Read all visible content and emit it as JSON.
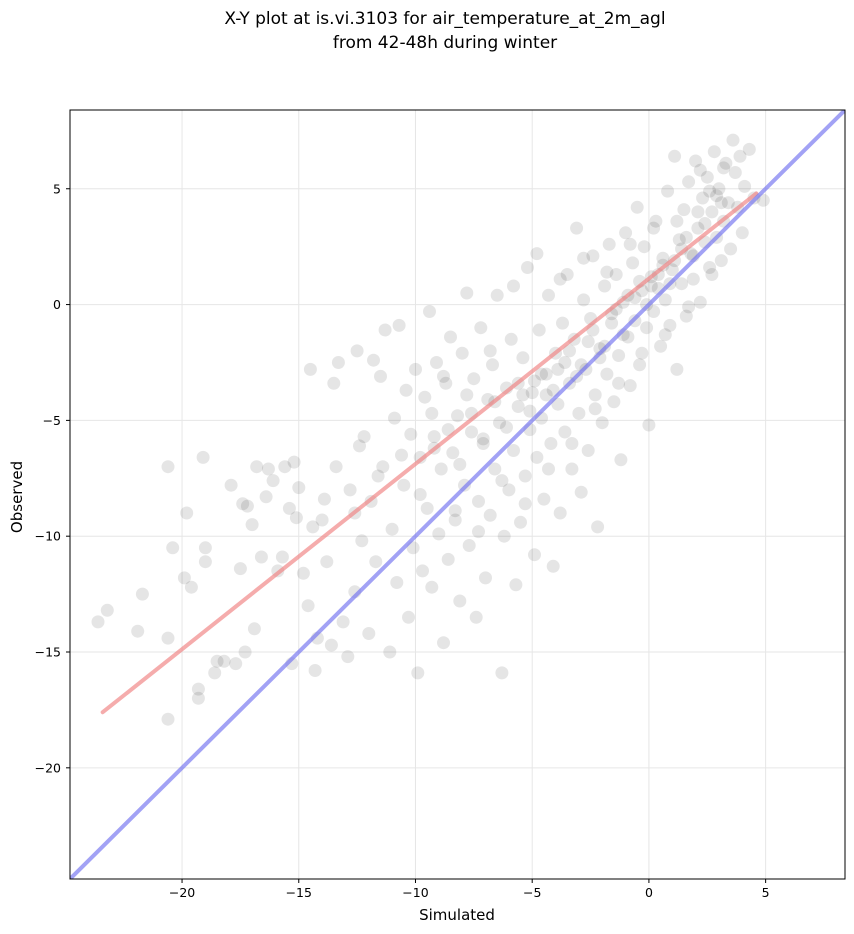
{
  "chart_data": {
    "type": "scatter",
    "title": "X-Y plot at is.vi.3103 for air_temperature_at_2m_agl",
    "subtitle": "from 42-48h during winter",
    "xlabel": "Simulated",
    "ylabel": "Observed",
    "xlim": [
      -24.8,
      8.4
    ],
    "ylim": [
      -24.8,
      8.4
    ],
    "xticks": [
      -20,
      -15,
      -10,
      -5,
      0,
      5
    ],
    "yticks": [
      -20,
      -15,
      -10,
      -5,
      0,
      5
    ],
    "xtick_labels": [
      "−20",
      "−15",
      "−10",
      "−5",
      "0",
      "5"
    ],
    "ytick_labels": [
      "−20",
      "−15",
      "−10",
      "−5",
      "0",
      "5"
    ],
    "grid": true,
    "point_color": "#000000",
    "point_alpha": 0.1,
    "lines": [
      {
        "role": "regression",
        "color": "#f08080",
        "x": [
          -23.4,
          4.6
        ],
        "y": [
          -17.6,
          4.8
        ]
      },
      {
        "role": "one-to-one",
        "color": "#7070f0",
        "x": [
          -24.8,
          8.4
        ],
        "y": [
          -24.8,
          8.4
        ]
      }
    ],
    "points": [
      [
        -23.6,
        -13.7
      ],
      [
        -23.2,
        -13.2
      ],
      [
        -21.9,
        -14.1
      ],
      [
        -21.7,
        -12.5
      ],
      [
        -20.6,
        -17.9
      ],
      [
        -20.6,
        -14.4
      ],
      [
        -20.6,
        -7.0
      ],
      [
        -20.4,
        -10.5
      ],
      [
        -19.9,
        -11.8
      ],
      [
        -19.8,
        -9.0
      ],
      [
        -19.6,
        -12.2
      ],
      [
        -19.3,
        -17.0
      ],
      [
        -19.3,
        -16.6
      ],
      [
        -19.1,
        -6.6
      ],
      [
        -19.0,
        -10.5
      ],
      [
        -19.0,
        -11.1
      ],
      [
        -18.6,
        -15.9
      ],
      [
        -18.5,
        -15.4
      ],
      [
        -18.2,
        -15.4
      ],
      [
        -17.9,
        -7.8
      ],
      [
        -17.7,
        -15.5
      ],
      [
        -17.5,
        -11.4
      ],
      [
        -17.4,
        -8.6
      ],
      [
        -17.3,
        -15.0
      ],
      [
        -17.2,
        -8.7
      ],
      [
        -17.0,
        -9.5
      ],
      [
        -16.9,
        -14.0
      ],
      [
        -16.8,
        -7.0
      ],
      [
        -16.6,
        -10.9
      ],
      [
        -16.4,
        -8.3
      ],
      [
        -16.3,
        -7.1
      ],
      [
        -16.1,
        -7.6
      ],
      [
        -15.9,
        -11.5
      ],
      [
        -15.7,
        -10.9
      ],
      [
        -15.6,
        -7.0
      ],
      [
        -15.4,
        -8.8
      ],
      [
        -15.3,
        -15.5
      ],
      [
        -15.2,
        -6.8
      ],
      [
        -15.1,
        -9.2
      ],
      [
        -15.0,
        -7.9
      ],
      [
        -14.8,
        -11.6
      ],
      [
        -14.6,
        -13.0
      ],
      [
        -14.5,
        -2.8
      ],
      [
        -14.4,
        -9.6
      ],
      [
        -14.3,
        -15.8
      ],
      [
        -14.2,
        -14.4
      ],
      [
        -14.0,
        -9.3
      ],
      [
        -13.9,
        -8.4
      ],
      [
        -13.8,
        -11.1
      ],
      [
        -13.6,
        -14.7
      ],
      [
        -13.5,
        -3.4
      ],
      [
        -13.4,
        -7.0
      ],
      [
        -13.3,
        -2.5
      ],
      [
        -13.1,
        -13.7
      ],
      [
        -12.9,
        -15.2
      ],
      [
        -12.8,
        -8.0
      ],
      [
        -12.6,
        -12.4
      ],
      [
        -12.5,
        -2.0
      ],
      [
        -12.4,
        -6.1
      ],
      [
        -12.3,
        -10.2
      ],
      [
        -12.2,
        -5.7
      ],
      [
        -12.0,
        -14.2
      ],
      [
        -11.9,
        -8.5
      ],
      [
        -11.8,
        -2.4
      ],
      [
        -11.7,
        -11.1
      ],
      [
        -11.5,
        -3.1
      ],
      [
        -11.4,
        -7.0
      ],
      [
        -11.3,
        -1.1
      ],
      [
        -11.1,
        -15.0
      ],
      [
        -11.0,
        -9.7
      ],
      [
        -10.9,
        -4.9
      ],
      [
        -10.8,
        -12.0
      ],
      [
        -10.7,
        -0.9
      ],
      [
        -10.5,
        -7.8
      ],
      [
        -10.4,
        -3.7
      ],
      [
        -10.3,
        -13.5
      ],
      [
        -10.2,
        -5.6
      ],
      [
        -10.1,
        -10.5
      ],
      [
        -10.0,
        -2.8
      ],
      [
        -9.9,
        -15.9
      ],
      [
        -9.8,
        -6.6
      ],
      [
        -9.7,
        -11.5
      ],
      [
        -9.6,
        -4.0
      ],
      [
        -9.5,
        -8.8
      ],
      [
        -9.4,
        -0.3
      ],
      [
        -9.3,
        -12.2
      ],
      [
        -9.2,
        -5.7
      ],
      [
        -9.1,
        -2.5
      ],
      [
        -9.0,
        -9.9
      ],
      [
        -8.9,
        -7.1
      ],
      [
        -8.8,
        -14.6
      ],
      [
        -8.7,
        -3.4
      ],
      [
        -8.6,
        -11.0
      ],
      [
        -8.5,
        -1.4
      ],
      [
        -8.4,
        -6.4
      ],
      [
        -8.3,
        -9.3
      ],
      [
        -8.2,
        -4.8
      ],
      [
        -8.1,
        -12.8
      ],
      [
        -8.0,
        -2.1
      ],
      [
        -7.9,
        -7.8
      ],
      [
        -7.8,
        0.5
      ],
      [
        -7.7,
        -10.4
      ],
      [
        -7.6,
        -5.5
      ],
      [
        -7.5,
        -3.2
      ],
      [
        -7.4,
        -13.5
      ],
      [
        -7.3,
        -8.5
      ],
      [
        -7.2,
        -1.0
      ],
      [
        -7.1,
        -6.0
      ],
      [
        -7.0,
        -11.8
      ],
      [
        -6.9,
        -4.1
      ],
      [
        -6.8,
        -9.1
      ],
      [
        -6.7,
        -2.6
      ],
      [
        -6.6,
        -7.1
      ],
      [
        -6.5,
        0.4
      ],
      [
        -6.4,
        -5.1
      ],
      [
        -6.3,
        -15.9
      ],
      [
        -6.2,
        -10.0
      ],
      [
        -6.1,
        -3.6
      ],
      [
        -6.0,
        -8.0
      ],
      [
        -5.9,
        -1.5
      ],
      [
        -5.8,
        -6.3
      ],
      [
        -5.7,
        -12.1
      ],
      [
        -5.6,
        -4.4
      ],
      [
        -5.5,
        -9.4
      ],
      [
        -5.4,
        -2.3
      ],
      [
        -5.3,
        -7.4
      ],
      [
        -5.2,
        1.6
      ],
      [
        -5.1,
        -5.4
      ],
      [
        -5.0,
        -3.8
      ],
      [
        -4.9,
        -10.8
      ],
      [
        -4.8,
        -6.6
      ],
      [
        -4.7,
        -1.1
      ],
      [
        -4.6,
        -4.9
      ],
      [
        -4.5,
        -8.4
      ],
      [
        -4.4,
        -3.0
      ],
      [
        -4.3,
        0.4
      ],
      [
        -4.2,
        -6.0
      ],
      [
        -4.1,
        -11.3
      ],
      [
        -4.0,
        -2.1
      ],
      [
        -3.9,
        -4.3
      ],
      [
        -3.8,
        -9.0
      ],
      [
        -3.7,
        -0.8
      ],
      [
        -3.6,
        -5.5
      ],
      [
        -3.5,
        1.3
      ],
      [
        -3.4,
        -3.4
      ],
      [
        -3.3,
        -7.1
      ],
      [
        -3.2,
        -1.5
      ],
      [
        -3.1,
        3.3
      ],
      [
        -3.0,
        -4.7
      ],
      [
        -2.9,
        -8.1
      ],
      [
        -2.8,
        0.2
      ],
      [
        -2.7,
        -2.8
      ],
      [
        -2.6,
        -6.3
      ],
      [
        -2.5,
        -0.6
      ],
      [
        -2.4,
        2.1
      ],
      [
        -2.3,
        -3.9
      ],
      [
        -2.2,
        -9.6
      ],
      [
        -2.1,
        -1.9
      ],
      [
        -2.0,
        -5.1
      ],
      [
        -1.9,
        0.8
      ],
      [
        -1.8,
        -3.0
      ],
      [
        -1.7,
        2.6
      ],
      [
        -1.6,
        -0.4
      ],
      [
        -1.5,
        -4.2
      ],
      [
        -1.4,
        1.3
      ],
      [
        -1.3,
        -2.2
      ],
      [
        -1.2,
        -6.7
      ],
      [
        -1.1,
        0.1
      ],
      [
        -1.0,
        3.1
      ],
      [
        -0.9,
        -1.4
      ],
      [
        -0.8,
        -3.5
      ],
      [
        -0.7,
        1.8
      ],
      [
        -0.6,
        -0.7
      ],
      [
        -0.5,
        4.2
      ],
      [
        -0.4,
        -2.6
      ],
      [
        -0.3,
        0.6
      ],
      [
        -0.2,
        2.5
      ],
      [
        -0.1,
        -1.0
      ],
      [
        0.0,
        -5.2
      ],
      [
        0.1,
        1.2
      ],
      [
        0.2,
        -0.3
      ],
      [
        0.3,
        3.6
      ],
      [
        0.4,
        0.7
      ],
      [
        0.5,
        -1.8
      ],
      [
        0.6,
        2.0
      ],
      [
        0.7,
        0.2
      ],
      [
        0.8,
        4.9
      ],
      [
        0.9,
        -0.9
      ],
      [
        1.0,
        1.5
      ],
      [
        1.1,
        6.4
      ],
      [
        1.2,
        -2.8
      ],
      [
        1.3,
        2.8
      ],
      [
        1.4,
        0.9
      ],
      [
        1.5,
        4.1
      ],
      [
        1.6,
        -0.5
      ],
      [
        1.7,
        5.3
      ],
      [
        1.8,
        2.2
      ],
      [
        1.9,
        1.1
      ],
      [
        2.0,
        6.2
      ],
      [
        2.1,
        3.3
      ],
      [
        2.2,
        0.1
      ],
      [
        2.3,
        4.6
      ],
      [
        2.4,
        2.7
      ],
      [
        2.5,
        5.5
      ],
      [
        2.6,
        1.6
      ],
      [
        2.7,
        4.0
      ],
      [
        2.8,
        6.6
      ],
      [
        2.9,
        2.9
      ],
      [
        3.0,
        5.0
      ],
      [
        3.1,
        1.9
      ],
      [
        3.2,
        3.6
      ],
      [
        3.3,
        6.1
      ],
      [
        3.4,
        4.4
      ],
      [
        3.5,
        2.4
      ],
      [
        3.6,
        7.1
      ],
      [
        3.7,
        5.7
      ],
      [
        3.8,
        4.2
      ],
      [
        3.9,
        6.4
      ],
      [
        4.0,
        3.1
      ],
      [
        4.1,
        5.1
      ],
      [
        4.3,
        6.7
      ],
      [
        4.5,
        4.6
      ],
      [
        4.9,
        4.5
      ],
      [
        -9.2,
        -6.2
      ],
      [
        -8.6,
        -5.4
      ],
      [
        -8.1,
        -6.9
      ],
      [
        -7.6,
        -4.7
      ],
      [
        -7.1,
        -5.8
      ],
      [
        -6.6,
        -4.2
      ],
      [
        -6.1,
        -5.3
      ],
      [
        -5.6,
        -3.4
      ],
      [
        -5.1,
        -4.6
      ],
      [
        -4.6,
        -3.0
      ],
      [
        -4.1,
        -3.7
      ],
      [
        -3.6,
        -2.5
      ],
      [
        -3.1,
        -3.1
      ],
      [
        -2.6,
        -1.6
      ],
      [
        -2.1,
        -2.3
      ],
      [
        -1.6,
        -0.8
      ],
      [
        -1.1,
        -1.3
      ],
      [
        -0.6,
        0.3
      ],
      [
        -0.1,
        0.0
      ],
      [
        0.4,
        1.3
      ],
      [
        0.9,
        0.9
      ],
      [
        1.4,
        2.4
      ],
      [
        1.9,
        2.1
      ],
      [
        2.4,
        3.5
      ],
      [
        2.9,
        4.7
      ],
      [
        -5.4,
        -3.9
      ],
      [
        -4.9,
        -3.3
      ],
      [
        -4.4,
        -3.9
      ],
      [
        -3.9,
        -2.8
      ],
      [
        -3.4,
        -2.0
      ],
      [
        -2.9,
        -2.6
      ],
      [
        -2.4,
        -1.1
      ],
      [
        -1.9,
        -1.8
      ],
      [
        -1.4,
        -0.2
      ],
      [
        -0.9,
        0.4
      ],
      [
        -0.4,
        1.0
      ],
      [
        0.1,
        0.8
      ],
      [
        0.6,
        1.7
      ],
      [
        1.1,
        1.9
      ],
      [
        1.6,
        2.9
      ],
      [
        2.1,
        4.0
      ],
      [
        2.6,
        4.9
      ],
      [
        3.1,
        4.4
      ],
      [
        -12.6,
        -9.0
      ],
      [
        -11.6,
        -7.4
      ],
      [
        -10.6,
        -6.5
      ],
      [
        -9.8,
        -8.2
      ],
      [
        -9.3,
        -4.7
      ],
      [
        -8.8,
        -3.1
      ],
      [
        -8.3,
        -8.9
      ],
      [
        -7.8,
        -3.9
      ],
      [
        -7.3,
        -9.8
      ],
      [
        -6.8,
        -2.0
      ],
      [
        -6.3,
        -7.6
      ],
      [
        -5.8,
        0.8
      ],
      [
        -5.3,
        -8.6
      ],
      [
        -4.8,
        2.2
      ],
      [
        -4.3,
        -7.1
      ],
      [
        -3.8,
        1.1
      ],
      [
        -3.3,
        -6.0
      ],
      [
        -2.8,
        2.0
      ],
      [
        -2.3,
        -4.5
      ],
      [
        -1.8,
        1.4
      ],
      [
        -1.3,
        -3.4
      ],
      [
        -0.8,
        2.6
      ],
      [
        -0.3,
        -2.1
      ],
      [
        0.2,
        3.3
      ],
      [
        0.7,
        -1.3
      ],
      [
        1.2,
        3.6
      ],
      [
        1.7,
        -0.1
      ],
      [
        2.2,
        5.8
      ],
      [
        2.7,
        1.3
      ],
      [
        3.2,
        5.9
      ]
    ]
  }
}
